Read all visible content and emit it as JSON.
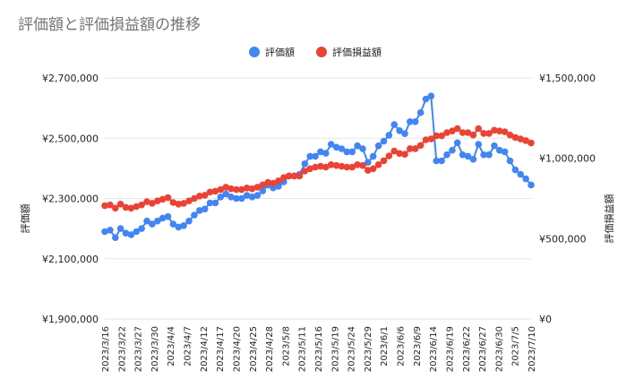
{
  "chart_data": {
    "type": "line",
    "title": "評価額と評価損益額の推移",
    "legend_position": "top-center",
    "grid": true,
    "xlabel": "",
    "ylabel": "評価額",
    "y2label": "評価損益額",
    "ylim": [
      1900000,
      2700000
    ],
    "y2lim": [
      0,
      1500000
    ],
    "yticks": [
      "¥1,900,000",
      "¥2,100,000",
      "¥2,300,000",
      "¥2,500,000",
      "¥2,700,000"
    ],
    "y2ticks": [
      "¥0",
      "¥500,000",
      "¥1,000,000",
      "¥1,500,000"
    ],
    "x_tick_labels": [
      "2023/3/16",
      "2023/3/22",
      "2023/3/27",
      "2023/3/30",
      "2023/4/4",
      "2023/4/7",
      "2023/4/12",
      "2023/4/17",
      "2023/4/20",
      "2023/4/25",
      "2023/4/28",
      "2023/5/8",
      "2023/5/11",
      "2023/5/16",
      "2023/5/19",
      "2023/5/24",
      "2023/5/29",
      "2023/6/1",
      "2023/6/6",
      "2023/6/9",
      "2023/6/14",
      "2023/6/19",
      "2023/6/22",
      "2023/6/27",
      "2023/6/30",
      "2023/7/5",
      "2023/7/10"
    ],
    "series": [
      {
        "name": "評価額",
        "axis": "left",
        "color": "#4285f4",
        "values": [
          2190000,
          2195000,
          2170000,
          2200000,
          2185000,
          2180000,
          2190000,
          2200000,
          2225000,
          2215000,
          2225000,
          2235000,
          2240000,
          2215000,
          2205000,
          2210000,
          2225000,
          2245000,
          2260000,
          2265000,
          2285000,
          2285000,
          2305000,
          2315000,
          2305000,
          2300000,
          2300000,
          2310000,
          2305000,
          2310000,
          2325000,
          2345000,
          2335000,
          2340000,
          2355000,
          2375000,
          2375000,
          2380000,
          2415000,
          2440000,
          2440000,
          2455000,
          2450000,
          2480000,
          2470000,
          2465000,
          2455000,
          2455000,
          2475000,
          2465000,
          2420000,
          2440000,
          2475000,
          2490000,
          2510000,
          2545000,
          2525000,
          2515000,
          2555000,
          2555000,
          2585000,
          2630000,
          2640000,
          2425000,
          2425000,
          2445000,
          2460000,
          2485000,
          2445000,
          2440000,
          2430000,
          2480000,
          2445000,
          2445000,
          2475000,
          2460000,
          2455000,
          2425000,
          2395000,
          2380000,
          2365000,
          2345000
        ]
      },
      {
        "name": "評価損益額",
        "axis": "right",
        "color": "#ea4335",
        "values": [
          705000,
          710000,
          690000,
          715000,
          695000,
          690000,
          700000,
          710000,
          730000,
          720000,
          735000,
          745000,
          755000,
          725000,
          715000,
          720000,
          735000,
          750000,
          765000,
          770000,
          790000,
          795000,
          805000,
          820000,
          810000,
          805000,
          805000,
          815000,
          810000,
          820000,
          835000,
          850000,
          845000,
          860000,
          880000,
          890000,
          890000,
          890000,
          920000,
          935000,
          945000,
          950000,
          945000,
          960000,
          955000,
          950000,
          945000,
          945000,
          960000,
          955000,
          925000,
          935000,
          960000,
          985000,
          1015000,
          1045000,
          1030000,
          1025000,
          1060000,
          1060000,
          1080000,
          1115000,
          1120000,
          1140000,
          1140000,
          1160000,
          1170000,
          1185000,
          1160000,
          1160000,
          1145000,
          1185000,
          1155000,
          1155000,
          1175000,
          1170000,
          1165000,
          1145000,
          1130000,
          1120000,
          1110000,
          1095000
        ]
      }
    ]
  }
}
